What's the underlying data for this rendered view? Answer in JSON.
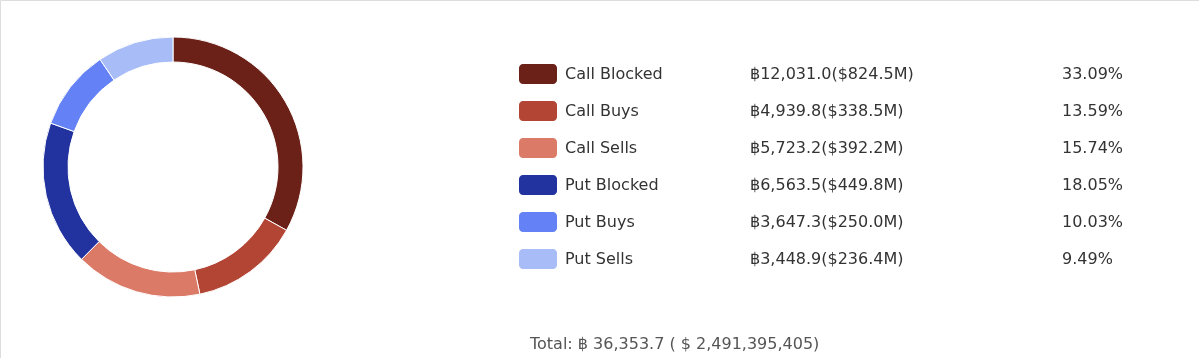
{
  "chart_data": {
    "type": "donut",
    "categories": [
      "Call Blocked",
      "Call Buys",
      "Call Sells",
      "Put Blocked",
      "Put Buys",
      "Put Sells"
    ],
    "values": [
      12031.0,
      4939.8,
      5723.2,
      6563.5,
      3647.3,
      3448.9
    ],
    "colors": [
      "#6b2018",
      "#b34535",
      "#dc7a68",
      "#2233a0",
      "#6482f5",
      "#a8bdf8"
    ],
    "value_labels": [
      "฿12,031.0($824.5M)",
      "฿4,939.8($338.5M)",
      "฿5,723.2($392.2M)",
      "฿6,563.5($449.8M)",
      "฿3,647.3($250.0M)",
      "฿3,448.9($236.4M)"
    ],
    "annotations": [
      "33.09%",
      "13.59%",
      "15.74%",
      "18.05%",
      "10.03%",
      "9.49%",
      "Total:  ฿ 36,353.7 ( $ 2,491,395,405)"
    ],
    "legend": "right"
  }
}
